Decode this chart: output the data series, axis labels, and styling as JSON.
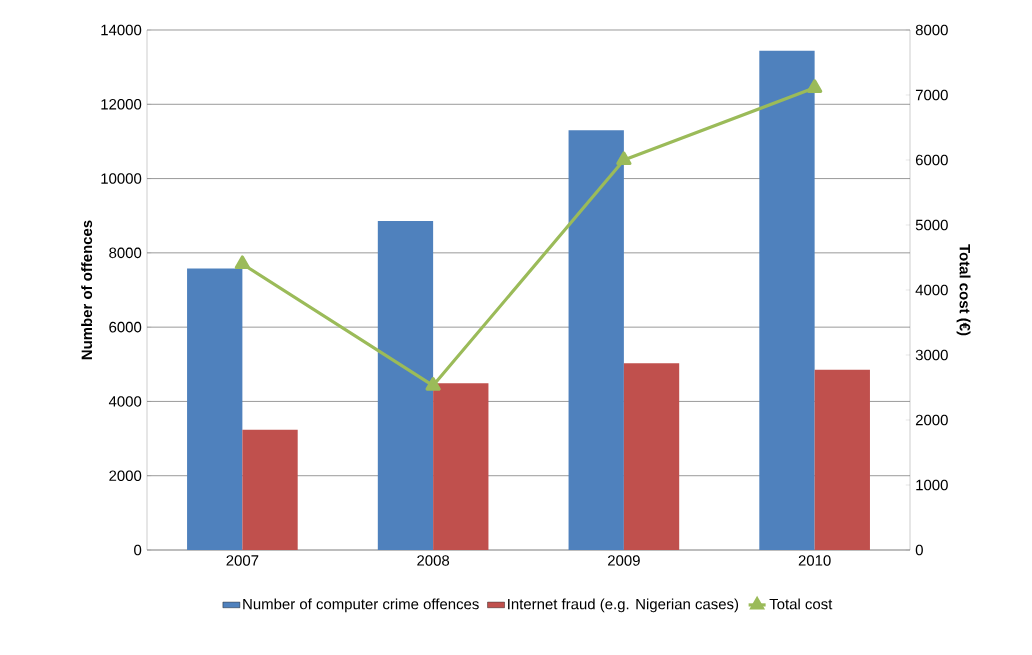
{
  "chart_data": {
    "type": "bar",
    "ylabel": "Number of offences",
    "y2label": "Total cost (€)",
    "categories": [
      "2007",
      "2008",
      "2009",
      "2010"
    ],
    "series": [
      {
        "name": "Number of computer crime offences",
        "color": "#4f81bd",
        "values": [
          7580,
          8860,
          11300,
          13440
        ]
      },
      {
        "name": "Internet fraud (e.g. Nigerian cases)",
        "color": "#c0504d",
        "values": [
          3240,
          4490,
          5030,
          4850
        ]
      },
      {
        "name": "Total cost",
        "type": "line",
        "axis": "y2",
        "marker": "triangle",
        "color": "#9bbb59",
        "values": [
          4400,
          2530,
          6000,
          7110
        ]
      }
    ],
    "ylim": [
      0,
      14000
    ],
    "yticks": [
      0,
      2000,
      4000,
      6000,
      8000,
      10000,
      12000,
      14000
    ],
    "y2lim": [
      0,
      8000
    ],
    "y2ticks": [
      0,
      1000,
      2000,
      3000,
      4000,
      5000,
      6000,
      7000,
      8000
    ],
    "grid": "y",
    "legend": "bottom"
  }
}
